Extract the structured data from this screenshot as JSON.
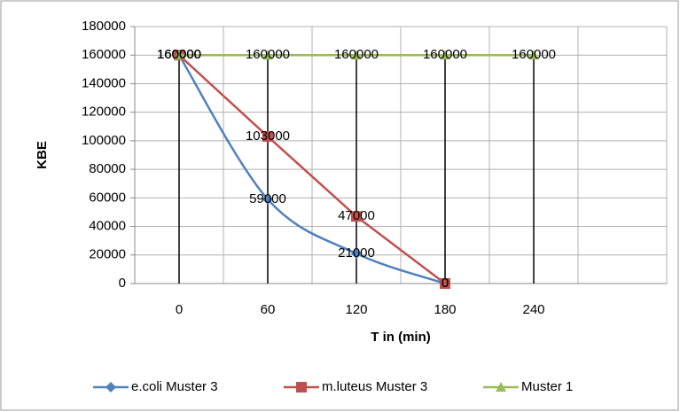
{
  "chart_data": {
    "type": "line",
    "xlabel": "T in (min)",
    "ylabel": "KBE",
    "categories": [
      0,
      60,
      120,
      180,
      240,
      null
    ],
    "series": [
      {
        "name": "e.coli Muster 3",
        "color": "#4f81bd",
        "marker": "diamond",
        "smooth": true,
        "values": [
          160000,
          59000,
          21000,
          0,
          null,
          null
        ]
      },
      {
        "name": "m.luteus Muster 3",
        "color": "#c0504d",
        "marker": "square",
        "smooth": false,
        "values": [
          160000,
          103000,
          47000,
          0,
          null,
          null
        ]
      },
      {
        "name": "Muster 1",
        "color": "#9bbb59",
        "marker": "triangle",
        "smooth": false,
        "values": [
          160000,
          160000,
          160000,
          160000,
          160000,
          null
        ]
      }
    ],
    "ylim": [
      0,
      180000
    ],
    "yticks": [
      0,
      20000,
      40000,
      60000,
      80000,
      100000,
      120000,
      140000,
      160000,
      180000
    ],
    "grid": true,
    "drop_lines": true,
    "data_labels": true,
    "legend": "bottom"
  }
}
